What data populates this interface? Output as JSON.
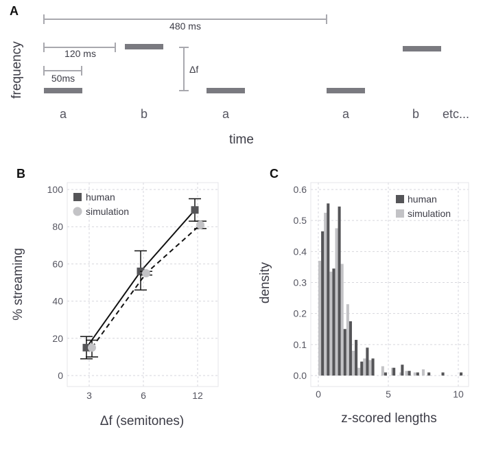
{
  "panels": {
    "A": {
      "label": "A",
      "ylabel": "frequency",
      "xlabel": "time",
      "annotations": {
        "span480": "480 ms",
        "span120": "120 ms",
        "span50": "50ms",
        "delta_f": "Δf"
      },
      "sequence": [
        "a",
        "b",
        "a",
        "a",
        "b",
        "etc..."
      ],
      "tone_color": "#7a7a80"
    },
    "B": {
      "label": "B"
    },
    "C": {
      "label": "C"
    }
  },
  "chart_data": [
    {
      "panel": "B",
      "type": "line",
      "xlabel": "Δf (semitones)",
      "ylabel": "% streaming",
      "categories": [
        "3",
        "6",
        "12"
      ],
      "ylim": [
        0,
        100
      ],
      "yticks": [
        0,
        20,
        40,
        60,
        80,
        100
      ],
      "grid": true,
      "legend": "top-left",
      "series": [
        {
          "name": "human",
          "values": [
            15,
            56,
            89
          ],
          "err_low": [
            9,
            46,
            83
          ],
          "err_high": [
            21,
            67,
            95
          ],
          "color": "#555558",
          "marker": "square",
          "line": "solid"
        },
        {
          "name": "simulation",
          "values": [
            15,
            55,
            81
          ],
          "err_low": [
            10,
            54,
            79
          ],
          "err_high": [
            19,
            56,
            83
          ],
          "color": "#c3c3c6",
          "marker": "circle",
          "line": "dashed"
        }
      ]
    },
    {
      "panel": "C",
      "type": "bar",
      "xlabel": "z-scored lengths",
      "ylabel": "density",
      "xlim": [
        -0.5,
        10.5
      ],
      "ylim": [
        0,
        0.6
      ],
      "xticks": [
        "0",
        "5",
        "10"
      ],
      "yticks": [
        "0.0",
        "0.1",
        "0.2",
        "0.3",
        "0.4",
        "0.5",
        "0.6"
      ],
      "grid": true,
      "legend": "top-right",
      "series": [
        {
          "name": "human",
          "color": "#555558",
          "x": [
            0.3,
            0.7,
            1.1,
            1.5,
            1.9,
            2.3,
            2.7,
            3.1,
            3.5,
            3.9,
            4.8,
            5.4,
            6.0,
            6.5,
            7.1,
            7.9,
            8.9,
            10.2
          ],
          "values": [
            0.465,
            0.555,
            0.345,
            0.545,
            0.15,
            0.175,
            0.115,
            0.045,
            0.09,
            0.055,
            0.01,
            0.025,
            0.035,
            0.015,
            0.01,
            0.01,
            0.01,
            0.01
          ]
        },
        {
          "name": "simulation",
          "color": "#c3c3c6",
          "x": [
            0.1,
            0.5,
            0.9,
            1.3,
            1.7,
            2.1,
            2.5,
            2.9,
            3.3,
            3.7,
            4.6,
            5.3,
            5.9,
            6.3,
            6.9,
            7.5
          ],
          "values": [
            0.37,
            0.525,
            0.335,
            0.475,
            0.36,
            0.23,
            0.08,
            0.025,
            0.055,
            0.05,
            0.03,
            0.025,
            0.01,
            0.015,
            0.01,
            0.02
          ]
        }
      ]
    }
  ]
}
